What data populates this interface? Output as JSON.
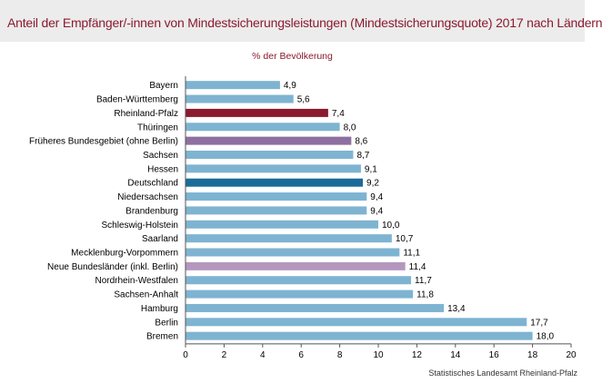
{
  "title": "Anteil der Empfänger/-innen von Mindestsicherungsleistungen (Mindestsicherungsquote) 2017 nach Ländern",
  "source": "Statistisches Landesamt Rheinland-Pfalz",
  "colors": {
    "default": "#7eb4d1",
    "rheinland_pfalz": "#8b1a2e",
    "frueheres_bundesgebiet": "#8e6fa1",
    "deutschland": "#1a6d98",
    "neue_bundeslaender": "#b497bf",
    "title": "#8b1a2e"
  },
  "chart_data": {
    "type": "bar",
    "orientation": "horizontal",
    "title": "% der Bevölkerung",
    "categories": [
      "Bayern",
      "Baden-Württemberg",
      "Rheinland-Pfalz",
      "Thüringen",
      "Früheres Bundesgebiet (ohne Berlin)",
      "Sachsen",
      "Hessen",
      "Deutschland",
      "Niedersachsen",
      "Brandenburg",
      "Schleswig-Holstein",
      "Saarland",
      "Mecklenburg-Vorpommern",
      "Neue Bundesländer (inkl. Berlin)",
      "Nordrhein-Westfalen",
      "Sachsen-Anhalt",
      "Hamburg",
      "Berlin",
      "Bremen"
    ],
    "values": [
      4.9,
      5.6,
      7.4,
      8.0,
      8.6,
      8.7,
      9.1,
      9.2,
      9.4,
      9.4,
      10.0,
      10.7,
      11.1,
      11.4,
      11.7,
      11.8,
      13.4,
      17.7,
      18.0
    ],
    "value_labels": [
      "4,9",
      "5,6",
      "7,4",
      "8,0",
      "8,6",
      "8,7",
      "9,1",
      "9,2",
      "9,4",
      "9,4",
      "10,0",
      "10,7",
      "11,1",
      "11,4",
      "11,7",
      "11,8",
      "13,4",
      "17,7",
      "18,0"
    ],
    "highlight": {
      "Rheinland-Pfalz": "rheinland_pfalz",
      "Früheres Bundesgebiet (ohne Berlin)": "frueheres_bundesgebiet",
      "Deutschland": "deutschland",
      "Neue Bundesländer (inkl. Berlin)": "neue_bundeslaender"
    },
    "xlim": [
      0,
      20
    ],
    "xticks": [
      0,
      2,
      4,
      6,
      8,
      10,
      12,
      14,
      16,
      18,
      20
    ],
    "grid": false,
    "legend": "none"
  }
}
